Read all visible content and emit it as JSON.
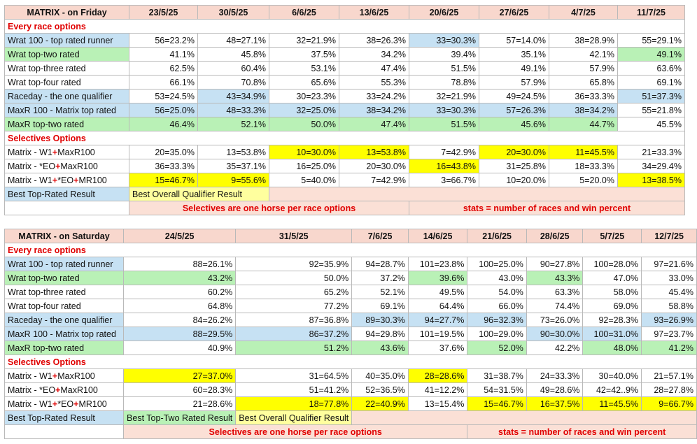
{
  "tables": [
    {
      "title": "MATRIX - on Friday",
      "dates": [
        "23/5/25",
        "30/5/25",
        "6/6/25",
        "13/6/25",
        "20/6/25",
        "27/6/25",
        "4/7/25",
        "11/7/25"
      ],
      "section1": "Every race options",
      "rows1": [
        {
          "label": "Wrat 100 - top rated runner",
          "label_bg": "blue",
          "cells": [
            {
              "v": "56=23.2%"
            },
            {
              "v": "48=27.1%"
            },
            {
              "v": "32=21.9%"
            },
            {
              "v": "38=26.3%"
            },
            {
              "v": "33=30.3%",
              "bg": "blue"
            },
            {
              "v": "57=14.0%"
            },
            {
              "v": "38=28.9%"
            },
            {
              "v": "55=29.1%"
            }
          ]
        },
        {
          "label": "Wrat top-two rated",
          "label_bg": "green",
          "cells": [
            {
              "v": "41.1%"
            },
            {
              "v": "45.8%"
            },
            {
              "v": "37.5%"
            },
            {
              "v": "34.2%"
            },
            {
              "v": "39.4%"
            },
            {
              "v": "35.1%"
            },
            {
              "v": "42.1%"
            },
            {
              "v": "49.1%",
              "bg": "green"
            }
          ]
        },
        {
          "label": "Wrat top-three rated",
          "cells": [
            {
              "v": "62.5%"
            },
            {
              "v": "60.4%"
            },
            {
              "v": "53.1%"
            },
            {
              "v": "47.4%"
            },
            {
              "v": "51.5%"
            },
            {
              "v": "49.1%"
            },
            {
              "v": "57.9%"
            },
            {
              "v": "63.6%"
            }
          ]
        },
        {
          "label": "Wrat top-four rated",
          "cells": [
            {
              "v": "66.1%"
            },
            {
              "v": "70.8%"
            },
            {
              "v": "65.6%"
            },
            {
              "v": "55.3%"
            },
            {
              "v": "78.8%"
            },
            {
              "v": "57.9%"
            },
            {
              "v": "65.8%"
            },
            {
              "v": "69.1%"
            }
          ]
        },
        {
          "label": "Raceday - the one qualifier",
          "label_bg": "blue",
          "cells": [
            {
              "v": "53=24.5%"
            },
            {
              "v": "43=34.9%",
              "bg": "blue"
            },
            {
              "v": "30=23.3%"
            },
            {
              "v": "33=24.2%"
            },
            {
              "v": "32=21.9%"
            },
            {
              "v": "49=24.5%"
            },
            {
              "v": "36=33.3%"
            },
            {
              "v": "51=37.3%",
              "bg": "blue"
            }
          ]
        },
        {
          "label": "MaxR 100 - Matrix top rated",
          "label_bg": "blue",
          "row_bg": "blue",
          "cells": [
            {
              "v": "56=25.0%"
            },
            {
              "v": "48=33.3%"
            },
            {
              "v": "32=25.0%"
            },
            {
              "v": "38=34.2%"
            },
            {
              "v": "33=30.3%"
            },
            {
              "v": "57=26.3%"
            },
            {
              "v": "38=34.2%"
            },
            {
              "v": "55=21.8%",
              "bg": "none"
            }
          ]
        },
        {
          "label": "MaxR top-two rated",
          "label_bg": "green",
          "row_bg": "green",
          "cells": [
            {
              "v": "46.4%"
            },
            {
              "v": "52.1%"
            },
            {
              "v": "50.0%"
            },
            {
              "v": "47.4%"
            },
            {
              "v": "51.5%"
            },
            {
              "v": "45.6%"
            },
            {
              "v": "44.7%"
            },
            {
              "v": "45.5%",
              "bg": "none"
            }
          ]
        }
      ],
      "section2": "Selectives Options",
      "rows2": [
        {
          "label_parts": [
            "Matrix - W1",
            "+",
            "MaxR100"
          ],
          "cells": [
            {
              "v": "20=35.0%"
            },
            {
              "v": "13=53.8%"
            },
            {
              "v": "10=30.0%",
              "bg": "yellow"
            },
            {
              "v": "13=53.8%",
              "bg": "yellow"
            },
            {
              "v": "7=42.9%"
            },
            {
              "v": "20=30.0%",
              "bg": "yellow"
            },
            {
              "v": "11=45.5%",
              "bg": "yellow"
            },
            {
              "v": "21=33.3%"
            }
          ]
        },
        {
          "label_parts": [
            "Matrix - *EO",
            "+",
            "MaxR100"
          ],
          "cells": [
            {
              "v": "36=33.3%"
            },
            {
              "v": "35=37.1%"
            },
            {
              "v": "16=25.0%"
            },
            {
              "v": "20=30.0%"
            },
            {
              "v": "16=43.8%",
              "bg": "yellow"
            },
            {
              "v": "31=25.8%"
            },
            {
              "v": "18=33.3%"
            },
            {
              "v": "34=29.4%"
            }
          ]
        },
        {
          "label_parts": [
            "Matrix - W1",
            "+",
            "*EO",
            "+",
            "MR100"
          ],
          "cells": [
            {
              "v": "15=46.7%",
              "bg": "yellow"
            },
            {
              "v": "9=55.6%",
              "bg": "yellow"
            },
            {
              "v": "5=40.0%"
            },
            {
              "v": "7=42.9%"
            },
            {
              "v": "3=66.7%"
            },
            {
              "v": "10=20.0%"
            },
            {
              "v": "5=20.0%"
            },
            {
              "v": "13=38.5%",
              "bg": "yellow"
            }
          ]
        }
      ],
      "legend_row": [
        {
          "text": "Best Top-Rated Result",
          "bg": "blue",
          "span": 1
        },
        {
          "text": "Best Overall Qualifier Result",
          "bg": "pale",
          "span": 2
        },
        {
          "text": "",
          "bg": "peach",
          "span": 6
        }
      ],
      "note_row": [
        {
          "text": "",
          "span": 1
        },
        {
          "text": "Selectives are one horse per race options",
          "span": 4,
          "bg": "peach"
        },
        {
          "text": "stats = number of races and win percent",
          "span": 4,
          "bg": "peach"
        }
      ]
    },
    {
      "title": "MATRIX - on Saturday",
      "dates": [
        "24/5/25",
        "31/5/25",
        "7/6/25",
        "14/6/25",
        "21/6/25",
        "28/6/25",
        "5/7/25",
        "12/7/25"
      ],
      "section1": "Every race options",
      "rows1": [
        {
          "label": "Wrat 100 - top rated runner",
          "label_bg": "blue",
          "cells": [
            {
              "v": "88=26.1%"
            },
            {
              "v": "92=35.9%"
            },
            {
              "v": "94=28.7%"
            },
            {
              "v": "101=23.8%"
            },
            {
              "v": "100=25.0%"
            },
            {
              "v": "90=27.8%"
            },
            {
              "v": "100=28.0%"
            },
            {
              "v": "97=21.6%"
            }
          ]
        },
        {
          "label": "Wrat top-two rated",
          "label_bg": "green",
          "cells": [
            {
              "v": "43.2%",
              "bg": "green"
            },
            {
              "v": "50.0%"
            },
            {
              "v": "37.2%"
            },
            {
              "v": "39.6%",
              "bg": "green"
            },
            {
              "v": "43.0%"
            },
            {
              "v": "43.3%",
              "bg": "green"
            },
            {
              "v": "47.0%"
            },
            {
              "v": "33.0%"
            }
          ]
        },
        {
          "label": "Wrat top-three rated",
          "cells": [
            {
              "v": "60.2%"
            },
            {
              "v": "65.2%"
            },
            {
              "v": "52.1%"
            },
            {
              "v": "49.5%"
            },
            {
              "v": "54.0%"
            },
            {
              "v": "63.3%"
            },
            {
              "v": "58.0%"
            },
            {
              "v": "45.4%"
            }
          ]
        },
        {
          "label": "Wrat top-four rated",
          "cells": [
            {
              "v": "64.8%"
            },
            {
              "v": "77.2%"
            },
            {
              "v": "69.1%"
            },
            {
              "v": "64.4%"
            },
            {
              "v": "66.0%"
            },
            {
              "v": "74.4%"
            },
            {
              "v": "69.0%"
            },
            {
              "v": "58.8%"
            }
          ]
        },
        {
          "label": "Raceday - the one qualifier",
          "label_bg": "blue",
          "cells": [
            {
              "v": "84=26.2%"
            },
            {
              "v": "87=36.8%"
            },
            {
              "v": "89=30.3%",
              "bg": "blue"
            },
            {
              "v": "94=27.7%",
              "bg": "blue"
            },
            {
              "v": "96=32.3%",
              "bg": "blue"
            },
            {
              "v": "73=26.0%"
            },
            {
              "v": "92=28.3%"
            },
            {
              "v": "93=26.9%",
              "bg": "blue"
            }
          ]
        },
        {
          "label": "MaxR 100 - Matrix top rated",
          "label_bg": "blue",
          "cells": [
            {
              "v": "88=29.5%",
              "bg": "blue"
            },
            {
              "v": "86=37.2%",
              "bg": "blue"
            },
            {
              "v": "94=29.8%"
            },
            {
              "v": "101=19.5%"
            },
            {
              "v": "100=29.0%"
            },
            {
              "v": "90=30.0%",
              "bg": "blue"
            },
            {
              "v": "100=31.0%",
              "bg": "blue"
            },
            {
              "v": "97=23.7%"
            }
          ]
        },
        {
          "label": "MaxR top-two rated",
          "label_bg": "green",
          "cells": [
            {
              "v": "40.9%"
            },
            {
              "v": "51.2%",
              "bg": "green"
            },
            {
              "v": "43.6%",
              "bg": "green"
            },
            {
              "v": "37.6%"
            },
            {
              "v": "52.0%",
              "bg": "green"
            },
            {
              "v": "42.2%"
            },
            {
              "v": "48.0%",
              "bg": "green"
            },
            {
              "v": "41.2%",
              "bg": "green"
            }
          ]
        }
      ],
      "section2": "Selectives Options",
      "rows2": [
        {
          "label_parts": [
            "Matrix - W1",
            "+",
            "MaxR100"
          ],
          "cells": [
            {
              "v": "27=37.0%",
              "bg": "yellow"
            },
            {
              "v": "31=64.5%"
            },
            {
              "v": "40=35.0%"
            },
            {
              "v": "28=28.6%",
              "bg": "yellow"
            },
            {
              "v": "31=38.7%"
            },
            {
              "v": "24=33.3%"
            },
            {
              "v": "30=40.0%"
            },
            {
              "v": "21=57.1%"
            }
          ]
        },
        {
          "label_parts": [
            "Matrix - *EO",
            "+",
            "MaxR100"
          ],
          "cells": [
            {
              "v": "60=28.3%"
            },
            {
              "v": "51=41.2%"
            },
            {
              "v": "52=36.5%"
            },
            {
              "v": "41=12.2%"
            },
            {
              "v": "54=31.5%"
            },
            {
              "v": "49=28.6%"
            },
            {
              "v": "42=42..9%"
            },
            {
              "v": "28=27.8%"
            }
          ]
        },
        {
          "label_parts": [
            "Matrix - W1",
            "+",
            "*EO",
            "+",
            "MR100"
          ],
          "cells": [
            {
              "v": "21=28.6%"
            },
            {
              "v": "18=77.8%",
              "bg": "yellow"
            },
            {
              "v": "22=40.9%",
              "bg": "yellow"
            },
            {
              "v": "13=15.4%"
            },
            {
              "v": "15=46.7%",
              "bg": "yellow"
            },
            {
              "v": "16=37.5%",
              "bg": "yellow"
            },
            {
              "v": "11=45.5%",
              "bg": "yellow"
            },
            {
              "v": "9=66.7%",
              "bg": "yellow"
            }
          ]
        }
      ],
      "legend_row": [
        {
          "text": "Best Top-Rated Result",
          "bg": "blue",
          "span": 1
        },
        {
          "text": "Best Top-Two Rated Result",
          "bg": "green",
          "span": 1
        },
        {
          "text": "Best Overall Qualifier Result",
          "bg": "pale",
          "span": 1
        },
        {
          "text": "",
          "bg": "peach",
          "span": 6
        }
      ],
      "note_row": [
        {
          "text": "",
          "span": 1
        },
        {
          "text": "Selectives are one horse per race options",
          "span": 4,
          "bg": "peach"
        },
        {
          "text": "stats = number of races and win percent",
          "span": 4,
          "bg": "peach"
        }
      ]
    }
  ]
}
